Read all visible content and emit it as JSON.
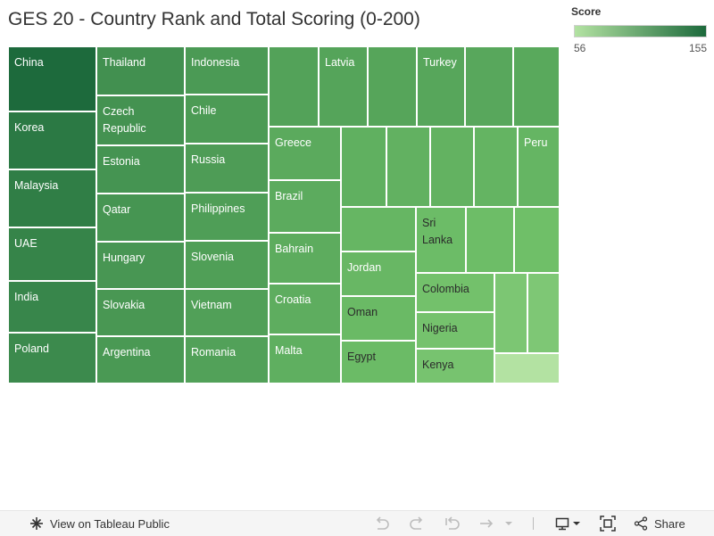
{
  "chart_data": {
    "type": "treemap",
    "title": "GES 20 - Country Rank and Total Scoring (0-200)",
    "legend": {
      "title": "Score",
      "min": "56",
      "max": "155",
      "color_low": "#b3e2a2",
      "color_high": "#1d6a3c"
    },
    "tiles": [
      {
        "label": "China",
        "value": 155
      },
      {
        "label": "Korea",
        "value": 143
      },
      {
        "label": "Malaysia",
        "value": 139
      },
      {
        "label": "UAE",
        "value": 134
      },
      {
        "label": "India",
        "value": 132
      },
      {
        "label": "Poland",
        "value": 129
      },
      {
        "label": "Thailand",
        "value": 124
      },
      {
        "label": "Czech Republic",
        "value": 122
      },
      {
        "label": "Estonia",
        "value": 121
      },
      {
        "label": "Qatar",
        "value": 120
      },
      {
        "label": "Hungary",
        "value": 119
      },
      {
        "label": "Slovakia",
        "value": 118
      },
      {
        "label": "Argentina",
        "value": 117
      },
      {
        "label": "Indonesia",
        "value": 116
      },
      {
        "label": "Chile",
        "value": 115
      },
      {
        "label": "Russia",
        "value": 114
      },
      {
        "label": "Philippines",
        "value": 113
      },
      {
        "label": "Slovenia",
        "value": 112
      },
      {
        "label": "Vietnam",
        "value": 111
      },
      {
        "label": "Romania",
        "value": 110
      },
      {
        "label": "",
        "value": 109
      },
      {
        "label": "Latvia",
        "value": 108
      },
      {
        "label": "",
        "value": 107
      },
      {
        "label": "Turkey",
        "value": 106
      },
      {
        "label": "",
        "value": 105
      },
      {
        "label": "",
        "value": 104
      },
      {
        "label": "Greece",
        "value": 103
      },
      {
        "label": "Brazil",
        "value": 102
      },
      {
        "label": "Bahrain",
        "value": 101
      },
      {
        "label": "Croatia",
        "value": 100
      },
      {
        "label": "Malta",
        "value": 99
      },
      {
        "label": "",
        "value": 98
      },
      {
        "label": "",
        "value": 97
      },
      {
        "label": "",
        "value": 96
      },
      {
        "label": "",
        "value": 95
      },
      {
        "label": "Peru",
        "value": 94
      },
      {
        "label": "",
        "value": 93
      },
      {
        "label": "Jordan",
        "value": 92
      },
      {
        "label": "Oman",
        "value": 90
      },
      {
        "label": "Egypt",
        "value": 89
      },
      {
        "label": "Sri Lanka",
        "value": 88
      },
      {
        "label": "",
        "value": 87
      },
      {
        "label": "",
        "value": 86
      },
      {
        "label": "Colombia",
        "value": 84
      },
      {
        "label": "Nigeria",
        "value": 83
      },
      {
        "label": "Kenya",
        "value": 82
      },
      {
        "label": "",
        "value": 80
      },
      {
        "label": "",
        "value": 79
      },
      {
        "label": "",
        "value": 56
      }
    ]
  },
  "toolbar": {
    "view_label": "View on Tableau Public",
    "share_label": "Share"
  }
}
